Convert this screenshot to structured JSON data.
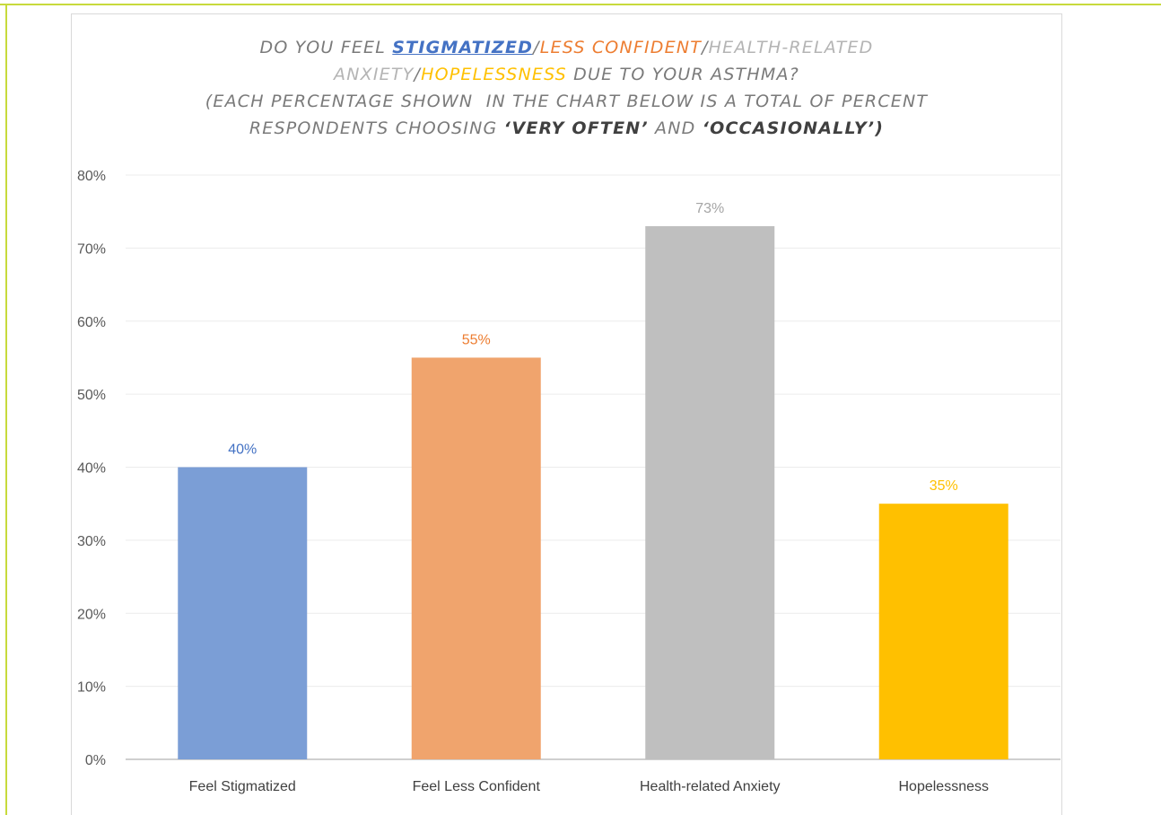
{
  "title": {
    "line1_pre": "DO YOU FEEL ",
    "line1_k1": "STIGMATIZED",
    "line1_sep1": "/",
    "line1_k2": "LESS CONFIDENT",
    "line1_sep2": "/",
    "line1_k3": "HEALTH-RELATED",
    "line2_k3b": "ANXIETY",
    "line2_sep3": "/",
    "line2_k4": "HOPELESSNESS",
    "line2_post": " DUE TO YOUR ASTHMA?",
    "line3": "(EACH PERCENTAGE SHOWN  IN THE CHART BELOW IS A TOTAL OF PERCENT",
    "line4_pre": "RESPONDENTS CHOOSING ",
    "line4_e1": "‘VERY OFTEN’",
    "line4_mid": " AND ",
    "line4_e2": "‘OCCASIONALLY’)"
  },
  "colors": {
    "stigmatized": "#4472c4",
    "less_confident": "#ed7d31",
    "anxiety": "#a5a5a5",
    "hopelessness": "#ffc000",
    "frame": "#c7da3c"
  },
  "chart_data": {
    "type": "bar",
    "title": "DO YOU FEEL STIGMATIZED/LESS CONFIDENT/HEALTH-RELATED ANXIETY/HOPELESSNESS DUE TO YOUR ASTHMA? (EACH PERCENTAGE SHOWN IN THE CHART BELOW IS A TOTAL OF PERCENT RESPONDENTS CHOOSING 'VERY OFTEN' AND 'OCCASIONALLY')",
    "categories": [
      "Feel Stigmatized",
      "Feel Less Confident",
      "Health-related Anxiety",
      "Hopelessness"
    ],
    "values": [
      40,
      55,
      73,
      35
    ],
    "data_labels": [
      "40%",
      "55%",
      "73%",
      "35%"
    ],
    "bar_colors": [
      "#7b9ed6",
      "#f0a46d",
      "#bfbfbf",
      "#ffc000"
    ],
    "label_colors": [
      "#4472c4",
      "#ed7d31",
      "#a5a5a5",
      "#ffc000"
    ],
    "y_ticks": [
      "0%",
      "10%",
      "20%",
      "30%",
      "40%",
      "50%",
      "60%",
      "70%",
      "80%"
    ],
    "ylim": [
      0,
      80
    ],
    "xlabel": "",
    "ylabel": "",
    "grid": true,
    "legend": "none"
  }
}
